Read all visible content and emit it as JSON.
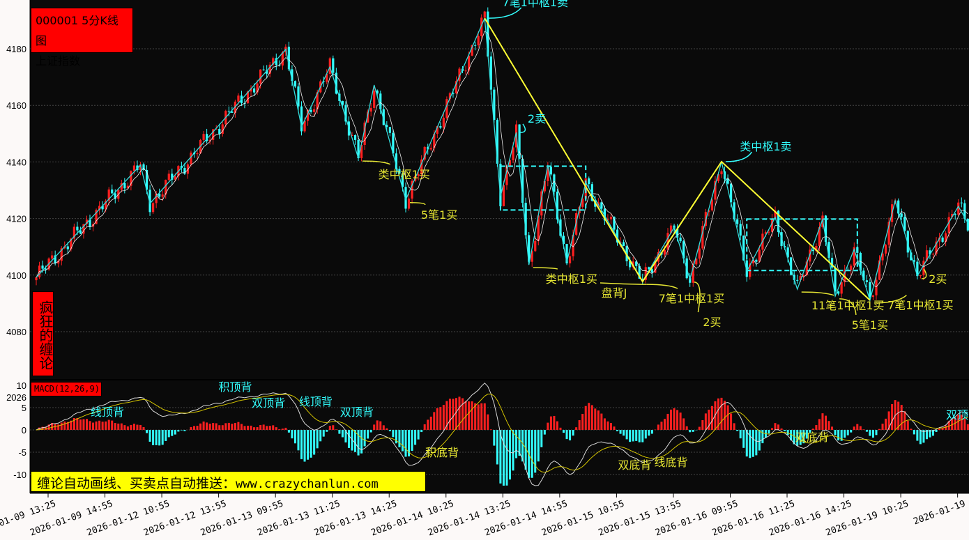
{
  "header": {
    "code_period": "000001 5分K线图",
    "index_name": "上证指数"
  },
  "side_label": "疯狂的缠论",
  "macd_label": "MACD(12,26,9)",
  "banner": {
    "text": "缠论自动画线、买卖点自动推送：",
    "url": "www.crazychanlun.com"
  },
  "colors": {
    "background": "#0a0a0a",
    "up": "#ff2020",
    "down": "#33ffff",
    "stroke": "#33dddd",
    "segment": "#ffff33",
    "zhongshu": "#33ffff",
    "buy_label": "#e6e633",
    "sell_label": "#33ffff",
    "dif": "#d8d8d8",
    "dea": "#d4c400"
  },
  "chart_data": [
    {
      "type": "candlestick",
      "title": "000001 5分K线图 上证指数",
      "ylim": [
        4065,
        4195
      ],
      "y_ticks": [
        4080,
        4100,
        4120,
        4140,
        4160,
        4180
      ],
      "grid": true,
      "x_tick_labels": [
        "2026-01-09 13:25",
        "2026-01-09 14:55",
        "2026-01-12 10:55",
        "2026-01-12 13:55",
        "2026-01-13 09:55",
        "2026-01-13 11:25",
        "2026-01-13 14:25",
        "2026-01-14 10:25",
        "2026-01-14 13:25",
        "2026-01-14 14:55",
        "2026-01-15 10:55",
        "2026-01-15 13:55",
        "2026-01-16 09:55",
        "2026-01-16 11:25",
        "2026-01-16 14:25",
        "2026-01-19 10:25",
        "2026-01-19"
      ],
      "bars_per_tick": 18,
      "strokes_bi": [
        [
          0,
          4099.2
        ],
        [
          33,
          4138.9
        ],
        [
          36,
          4125.3
        ],
        [
          79,
          4179.8
        ],
        [
          84,
          4152.4
        ],
        [
          93,
          4173.6
        ],
        [
          102,
          4141.3
        ],
        [
          107,
          4167.2
        ],
        [
          117,
          4126.6
        ],
        [
          142,
          4190.8
        ],
        [
          147,
          4127.8
        ],
        [
          152,
          4150.4
        ],
        [
          156,
          4103.6
        ],
        [
          162,
          4138.9
        ],
        [
          168,
          4104.6
        ],
        [
          174,
          4132.7
        ],
        [
          192,
          4097.7
        ],
        [
          202,
          4116.9
        ],
        [
          207,
          4098.5
        ],
        [
          217,
          4140.1
        ],
        [
          225,
          4101.4
        ],
        [
          234,
          4120.4
        ],
        [
          241,
          4095.0
        ],
        [
          249,
          4119.7
        ],
        [
          253,
          4092.6
        ],
        [
          259,
          4109.1
        ],
        [
          264,
          4091.1
        ],
        [
          272,
          4126.3
        ],
        [
          279,
          4099.7
        ],
        [
          292,
          4124.3
        ],
        [
          295,
          4118.4
        ]
      ],
      "segments_xd": [
        [
          142,
          4190.8
        ],
        [
          192,
          4097.7
        ],
        [
          217,
          4140.1
        ],
        [
          264,
          4091.1
        ]
      ],
      "zhongshu": [
        {
          "from": 147,
          "to": 174,
          "low": 4123.0,
          "high": 4138.5
        },
        {
          "from": 225,
          "to": 260,
          "low": 4101.6,
          "high": 4119.8
        }
      ],
      "annotations": [
        {
          "text": "7笔1中枢1卖",
          "type": "sell",
          "at": [
            158,
            4196.5
          ],
          "target": [
            142,
            4190.8
          ]
        },
        {
          "text": "2卖",
          "type": "sell",
          "at": [
            158.5,
            4155.4
          ],
          "target": [
            152,
            4150.4
          ]
        },
        {
          "text": "类中枢1卖",
          "type": "sell",
          "at": [
            231,
            4145.5
          ],
          "target": [
            217,
            4140.1
          ]
        },
        {
          "text": "类中枢1买",
          "type": "buy",
          "at": [
            116.5,
            4135.7
          ],
          "target": [
            102,
            4141.3
          ]
        },
        {
          "text": "5笔1买",
          "type": "buy",
          "at": [
            127.6,
            4121.4
          ],
          "target": [
            117,
            4126.6
          ]
        },
        {
          "text": "类中枢1买",
          "type": "buy",
          "at": [
            169.5,
            4098.7
          ],
          "target": [
            156,
            4103.6
          ]
        },
        {
          "text": "盘背J",
          "type": "buy",
          "at": [
            183,
            4093.8
          ],
          "target": [
            192,
            4097.7
          ]
        },
        {
          "text": "7笔1中枢1买",
          "type": "buy",
          "at": [
            207.5,
            4091.8
          ],
          "target": [
            192,
            4097.7
          ]
        },
        {
          "text": "2买",
          "type": "buy",
          "at": [
            214,
            4092.3
          ],
          "target": [
            207,
            4098.5
          ]
        },
        {
          "text": "11笔1中枢1买",
          "type": "buy",
          "at": [
            257,
            4089.4
          ],
          "target": [
            241,
            4095.0
          ]
        },
        {
          "text": "5笔1买",
          "type": "buy",
          "at": [
            264,
            4086.9
          ],
          "target": [
            253,
            4092.6
          ]
        },
        {
          "text": "7笔1中枢1买",
          "type": "buy",
          "at": [
            280,
            4085.0
          ],
          "target": [
            264,
            4091.1
          ]
        },
        {
          "text": "2买",
          "type": "buy",
          "at": [
            285.5,
            4094.3
          ],
          "target": [
            279,
            4099.7
          ]
        }
      ]
    },
    {
      "type": "bar",
      "title": "MACD(12,26,9)",
      "ylim": [
        -13,
        11
      ],
      "y_ticks": [
        10,
        5,
        0,
        -5,
        -10
      ],
      "y_extra_label": "2026",
      "grid": true,
      "series": [
        {
          "name": "DIF"
        },
        {
          "name": "DEA"
        },
        {
          "name": "MACD"
        }
      ],
      "annotations": [
        {
          "text": "线顶背",
          "type": "sell",
          "at": [
            22.5,
            4.1
          ]
        },
        {
          "text": "积顶背",
          "type": "sell",
          "at": [
            63,
            9.7
          ]
        },
        {
          "text": "双顶背",
          "type": "sell",
          "at": [
            73.5,
            8.9
          ]
        },
        {
          "text": "线顶背",
          "type": "sell",
          "at": [
            88.5,
            6.4
          ]
        },
        {
          "text": "双顶背",
          "type": "sell",
          "at": [
            101.5,
            4.1
          ]
        },
        {
          "text": "积底背",
          "type": "buy",
          "at": [
            128.5,
            -5
          ]
        },
        {
          "text": "双底背",
          "type": "buy",
          "at": [
            189.5,
            -7.8
          ]
        },
        {
          "text": "线底背",
          "type": "buy",
          "at": [
            201,
            -7.2
          ]
        },
        {
          "text": "双底背",
          "type": "buy",
          "at": [
            245.7,
            -1.6
          ]
        },
        {
          "text": "双顶",
          "type": "sell",
          "at": [
            292,
            3.4
          ]
        }
      ]
    }
  ]
}
